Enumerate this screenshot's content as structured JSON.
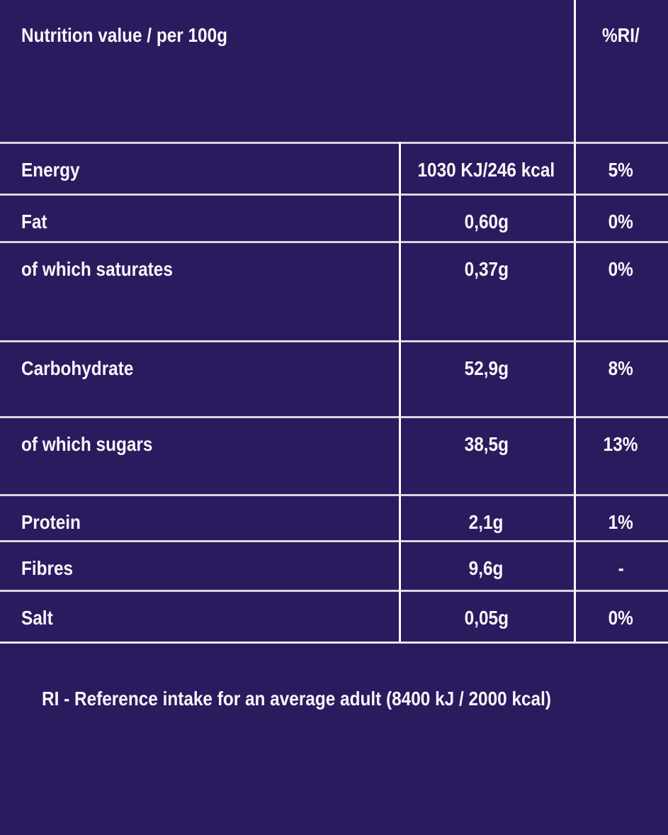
{
  "colors": {
    "background": "#2a1b5e",
    "grid_line": "#ffffff",
    "text": "#f7f6fb"
  },
  "header": {
    "title": "Nutrition value / per 100g",
    "ri_label": "%RI/"
  },
  "rows": [
    {
      "name": "Energy",
      "value": "1030 KJ/246 kcal",
      "ri": "5%"
    },
    {
      "name": "Fat",
      "value": "0,60g",
      "ri": "0%"
    },
    {
      "name": "of which saturates",
      "value": "0,37g",
      "ri": "0%"
    },
    {
      "name": "Carbohydrate",
      "value": "52,9g",
      "ri": "8%"
    },
    {
      "name": "of which sugars",
      "value": "38,5g",
      "ri": "13%"
    },
    {
      "name": "Protein",
      "value": "2,1g",
      "ri": "1%"
    },
    {
      "name": "Fibres",
      "value": "9,6g",
      "ri": "-"
    },
    {
      "name": "Salt",
      "value": "0,05g",
      "ri": "0%"
    }
  ],
  "footnote": "RI  - Reference intake for an average adult (8400 kJ / 2000 kcal)"
}
